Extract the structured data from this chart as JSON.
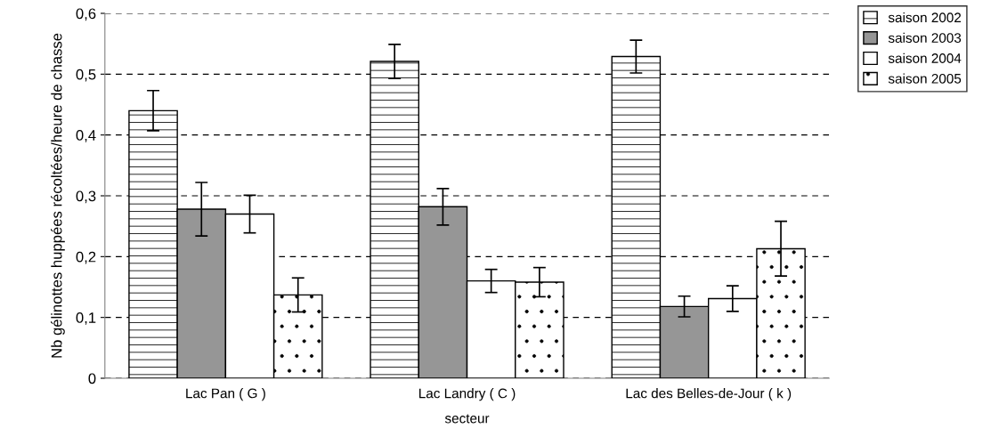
{
  "chart_data": {
    "type": "bar",
    "xlabel": "secteur",
    "ylabel": "Nb gélinottes huppées récoltées/heure de chasse",
    "categories": [
      "Lac Pan ( G )",
      "Lac Landry ( C )",
      "Lac des Belles-de-Jour ( k )"
    ],
    "series": [
      {
        "name": "saison 2002",
        "color": "#ffffff",
        "values": [
          0.44,
          0.521,
          0.529
        ],
        "errors": [
          0.033,
          0.028,
          0.027
        ]
      },
      {
        "name": "saison 2003",
        "color": "#969696",
        "values": [
          0.278,
          0.282,
          0.118
        ],
        "errors": [
          0.044,
          0.03,
          0.017
        ]
      },
      {
        "name": "saison 2004",
        "color": "#ffffff",
        "values": [
          0.27,
          0.16,
          0.131
        ],
        "errors": [
          0.031,
          0.019,
          0.021
        ]
      },
      {
        "name": "saison 2005",
        "color": "#ffffff",
        "values": [
          0.137,
          0.158,
          0.213
        ],
        "errors": [
          0.028,
          0.024,
          0.045
        ]
      }
    ],
    "ylim": [
      0,
      0.6
    ],
    "yticks": [
      0,
      {
        "value": 0.1,
        "label": "0,1"
      },
      {
        "value": 0.2,
        "label": "0,2"
      },
      {
        "value": 0.3,
        "label": "0,3"
      },
      {
        "value": 0.4,
        "label": "0,4"
      },
      {
        "value": 0.5,
        "label": "0,5"
      },
      {
        "value": 0.6,
        "label": "0,6"
      }
    ],
    "grid": "y",
    "legend": "right"
  }
}
